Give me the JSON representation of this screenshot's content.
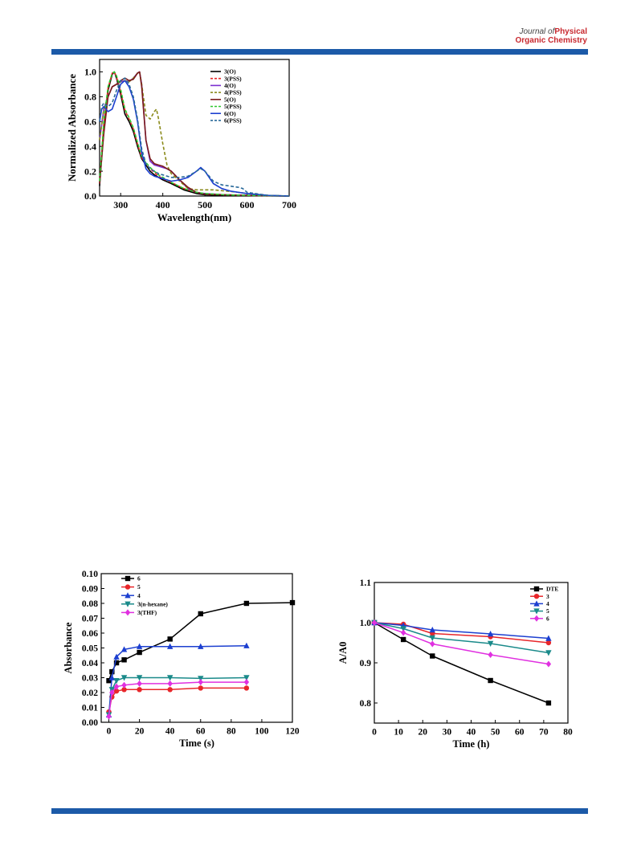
{
  "header": {
    "journal_line1_prefix": "Journal of",
    "journal_line1_emph": "Physical",
    "journal_line2": "Organic Chemistry"
  },
  "chart_data": [
    {
      "type": "line",
      "xlabel": "Wavelength(nm)",
      "ylabel": "Normalized Absorbance",
      "xlim": [
        250,
        700
      ],
      "ylim": [
        0,
        1.1
      ],
      "xticks": [
        300,
        400,
        500,
        600,
        700
      ],
      "yticks": [
        0.0,
        0.2,
        0.4,
        0.6,
        0.8,
        1.0
      ],
      "ytick_labels": [
        "0.0",
        "0.2",
        "0.4",
        "0.6",
        "0.8",
        "1.0"
      ],
      "legend": "top-right",
      "grid": false,
      "series": [
        {
          "name": "3(O)",
          "color": "#000000",
          "dash": "solid",
          "x": [
            250,
            260,
            270,
            280,
            285,
            290,
            300,
            310,
            320,
            330,
            340,
            350,
            360,
            370,
            380,
            390,
            400,
            420,
            450,
            480,
            500,
            550,
            600,
            650,
            700
          ],
          "y": [
            0.08,
            0.55,
            0.85,
            0.98,
            1.0,
            0.95,
            0.82,
            0.66,
            0.6,
            0.52,
            0.4,
            0.3,
            0.25,
            0.2,
            0.17,
            0.15,
            0.13,
            0.1,
            0.05,
            0.02,
            0.01,
            0.005,
            0.003,
            0.002,
            0.0
          ]
        },
        {
          "name": "3(PSS)",
          "color": "#e8262a",
          "dash": "dash",
          "x": [
            250,
            260,
            270,
            280,
            285,
            290,
            300,
            310,
            320,
            330,
            340,
            350,
            360,
            370,
            380,
            390,
            400,
            420,
            450,
            480,
            500,
            550,
            600,
            650,
            700
          ],
          "y": [
            0.1,
            0.58,
            0.87,
            0.99,
            1.0,
            0.96,
            0.84,
            0.69,
            0.62,
            0.54,
            0.42,
            0.31,
            0.26,
            0.22,
            0.19,
            0.16,
            0.14,
            0.11,
            0.06,
            0.03,
            0.015,
            0.01,
            0.005,
            0.003,
            0.0
          ]
        },
        {
          "name": "4(O)",
          "color": "#7b2fd0",
          "dash": "solid",
          "x": [
            250,
            260,
            270,
            280,
            290,
            300,
            310,
            320,
            330,
            340,
            345,
            350,
            360,
            370,
            380,
            390,
            400,
            410,
            420,
            440,
            460,
            480,
            500,
            550,
            600,
            650,
            700
          ],
          "y": [
            0.45,
            0.7,
            0.8,
            0.88,
            0.9,
            0.92,
            0.93,
            0.92,
            0.95,
            0.99,
            1.0,
            0.9,
            0.45,
            0.28,
            0.25,
            0.24,
            0.23,
            0.22,
            0.2,
            0.13,
            0.06,
            0.03,
            0.02,
            0.01,
            0.005,
            0.003,
            0.0
          ]
        },
        {
          "name": "4(PSS)",
          "color": "#8a8a1a",
          "dash": "dash",
          "x": [
            250,
            260,
            270,
            280,
            290,
            300,
            310,
            320,
            330,
            340,
            345,
            350,
            360,
            370,
            380,
            385,
            390,
            400,
            410,
            420,
            440,
            460,
            480,
            500,
            520,
            550,
            580,
            600,
            650,
            700
          ],
          "y": [
            0.45,
            0.7,
            0.8,
            0.88,
            0.9,
            0.92,
            0.93,
            0.92,
            0.95,
            0.99,
            1.0,
            0.9,
            0.65,
            0.62,
            0.68,
            0.7,
            0.62,
            0.42,
            0.25,
            0.18,
            0.12,
            0.06,
            0.05,
            0.05,
            0.05,
            0.04,
            0.03,
            0.02,
            0.005,
            0.0
          ]
        },
        {
          "name": "5(O)",
          "color": "#7a1a1a",
          "dash": "solid",
          "x": [
            250,
            260,
            270,
            280,
            290,
            300,
            310,
            320,
            330,
            340,
            345,
            350,
            360,
            370,
            380,
            390,
            400,
            420,
            440,
            460,
            480,
            500,
            550,
            600,
            650,
            700
          ],
          "y": [
            0.1,
            0.5,
            0.8,
            0.88,
            0.9,
            0.93,
            0.95,
            0.93,
            0.94,
            0.99,
            1.0,
            0.88,
            0.45,
            0.3,
            0.26,
            0.25,
            0.24,
            0.2,
            0.13,
            0.07,
            0.03,
            0.015,
            0.01,
            0.005,
            0.002,
            0.0
          ]
        },
        {
          "name": "5(PSS)",
          "color": "#2ec82e",
          "dash": "dash",
          "x": [
            250,
            260,
            270,
            280,
            285,
            290,
            300,
            310,
            320,
            330,
            340,
            350,
            360,
            370,
            380,
            390,
            400,
            420,
            450,
            480,
            500,
            550,
            600,
            650,
            700
          ],
          "y": [
            0.12,
            0.6,
            0.88,
            0.99,
            1.0,
            0.97,
            0.86,
            0.7,
            0.63,
            0.55,
            0.43,
            0.32,
            0.27,
            0.23,
            0.2,
            0.17,
            0.15,
            0.11,
            0.06,
            0.03,
            0.02,
            0.01,
            0.005,
            0.003,
            0.0
          ]
        },
        {
          "name": "6(O)",
          "color": "#1c3fd0",
          "dash": "solid",
          "x": [
            250,
            255,
            260,
            270,
            280,
            290,
            300,
            310,
            320,
            330,
            340,
            350,
            360,
            370,
            380,
            390,
            400,
            420,
            440,
            460,
            480,
            490,
            500,
            520,
            540,
            560,
            580,
            600,
            650,
            700
          ],
          "y": [
            0.6,
            0.7,
            0.72,
            0.68,
            0.7,
            0.8,
            0.9,
            0.93,
            0.88,
            0.78,
            0.6,
            0.35,
            0.22,
            0.18,
            0.16,
            0.15,
            0.14,
            0.12,
            0.13,
            0.15,
            0.2,
            0.23,
            0.2,
            0.1,
            0.06,
            0.04,
            0.03,
            0.02,
            0.005,
            0.0
          ]
        },
        {
          "name": "6(PSS)",
          "color": "#2a6a9a",
          "dash": "dash",
          "x": [
            250,
            255,
            260,
            270,
            280,
            290,
            300,
            310,
            320,
            330,
            340,
            350,
            360,
            370,
            380,
            390,
            400,
            420,
            440,
            460,
            480,
            490,
            500,
            520,
            540,
            560,
            580,
            590,
            600,
            650,
            700
          ],
          "y": [
            0.6,
            0.72,
            0.75,
            0.72,
            0.75,
            0.85,
            0.93,
            0.95,
            0.9,
            0.8,
            0.62,
            0.38,
            0.26,
            0.22,
            0.2,
            0.18,
            0.17,
            0.15,
            0.15,
            0.16,
            0.2,
            0.22,
            0.2,
            0.12,
            0.09,
            0.08,
            0.07,
            0.06,
            0.03,
            0.005,
            0.0
          ]
        }
      ]
    },
    {
      "type": "line",
      "xlabel": "Time (s)",
      "ylabel": "Absorbance",
      "xlim": [
        -5,
        120
      ],
      "ylim": [
        0,
        0.1
      ],
      "xticks": [
        0,
        20,
        40,
        60,
        80,
        100,
        120
      ],
      "yticks": [
        0.0,
        0.01,
        0.02,
        0.03,
        0.04,
        0.05,
        0.06,
        0.07,
        0.08,
        0.09,
        0.1
      ],
      "ytick_labels": [
        "0.00",
        "0.01",
        "0.02",
        "0.03",
        "0.04",
        "0.05",
        "0.06",
        "0.07",
        "0.08",
        "0.09",
        "0.10"
      ],
      "legend": "top-left",
      "grid": false,
      "series": [
        {
          "name": "6",
          "color": "#000000",
          "marker": "square",
          "x": [
            0,
            2,
            5,
            10,
            20,
            40,
            60,
            90,
            120
          ],
          "y": [
            0.028,
            0.034,
            0.04,
            0.042,
            0.047,
            0.056,
            0.073,
            0.08,
            0.0805
          ]
        },
        {
          "name": "5",
          "color": "#e8262a",
          "marker": "circle",
          "x": [
            0,
            2,
            5,
            10,
            20,
            40,
            60,
            90
          ],
          "y": [
            0.007,
            0.017,
            0.021,
            0.022,
            0.022,
            0.022,
            0.023,
            0.023
          ]
        },
        {
          "name": "4",
          "color": "#1c3fd0",
          "marker": "triangle-up",
          "x": [
            0,
            2,
            5,
            10,
            20,
            40,
            60,
            90
          ],
          "y": [
            0.005,
            0.03,
            0.044,
            0.049,
            0.051,
            0.051,
            0.051,
            0.0515
          ]
        },
        {
          "name": "3(n-hexane)",
          "color": "#1a8a8a",
          "marker": "triangle-down",
          "x": [
            0,
            2,
            5,
            10,
            20,
            40,
            60,
            90
          ],
          "y": [
            0.005,
            0.022,
            0.028,
            0.03,
            0.03,
            0.03,
            0.0295,
            0.03
          ]
        },
        {
          "name": "3(THF)",
          "color": "#e030e0",
          "marker": "diamond",
          "x": [
            0,
            2,
            5,
            10,
            20,
            40,
            60,
            90
          ],
          "y": [
            0.004,
            0.02,
            0.024,
            0.025,
            0.026,
            0.026,
            0.027,
            0.027
          ]
        }
      ]
    },
    {
      "type": "line",
      "xlabel": "Time (h)",
      "ylabel": "A/A0",
      "xlim": [
        0,
        80
      ],
      "ylim": [
        0.75,
        1.1
      ],
      "xticks": [
        0,
        10,
        20,
        30,
        40,
        50,
        60,
        70,
        80
      ],
      "yticks": [
        0.8,
        0.9,
        1.0,
        1.1
      ],
      "ytick_labels": [
        "0.8",
        "0.9",
        "1.0",
        "1.1"
      ],
      "legend": "top-right",
      "grid": false,
      "series": [
        {
          "name": "DTE",
          "color": "#000000",
          "marker": "square",
          "x": [
            0,
            12,
            24,
            48,
            72
          ],
          "y": [
            1.0,
            0.958,
            0.917,
            0.856,
            0.8
          ]
        },
        {
          "name": "3",
          "color": "#e8262a",
          "marker": "circle",
          "x": [
            0,
            12,
            24,
            48,
            72
          ],
          "y": [
            1.0,
            0.996,
            0.973,
            0.965,
            0.95
          ]
        },
        {
          "name": "4",
          "color": "#1c3fd0",
          "marker": "triangle-up",
          "x": [
            0,
            12,
            24,
            48,
            72
          ],
          "y": [
            1.0,
            0.993,
            0.982,
            0.972,
            0.961
          ]
        },
        {
          "name": "5",
          "color": "#1a8a8a",
          "marker": "triangle-down",
          "x": [
            0,
            12,
            24,
            48,
            72
          ],
          "y": [
            1.0,
            0.985,
            0.962,
            0.948,
            0.925
          ]
        },
        {
          "name": "6",
          "color": "#e030e0",
          "marker": "diamond",
          "x": [
            0,
            12,
            24,
            48,
            72
          ],
          "y": [
            1.0,
            0.975,
            0.947,
            0.92,
            0.897
          ]
        }
      ]
    }
  ]
}
